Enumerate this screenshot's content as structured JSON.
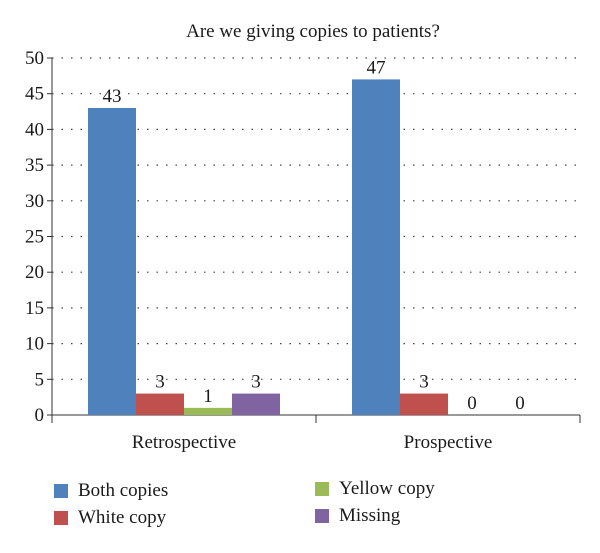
{
  "chart_data": {
    "type": "bar",
    "title": "Are we giving copies to patients?",
    "categories": [
      "Retrospective",
      "Prospective"
    ],
    "series": [
      {
        "name": "Both copies",
        "values": [
          43,
          47
        ],
        "color": "#4f81bd"
      },
      {
        "name": "White copy",
        "values": [
          3,
          3
        ],
        "color": "#c0504d"
      },
      {
        "name": "Yellow copy",
        "values": [
          1,
          0
        ],
        "color": "#9bbb59"
      },
      {
        "name": "Missing",
        "values": [
          3,
          0
        ],
        "color": "#8064a2"
      }
    ],
    "ylim": [
      0,
      50
    ],
    "yticks": [
      0,
      5,
      10,
      15,
      20,
      25,
      30,
      35,
      40,
      45,
      50
    ],
    "grid": true,
    "legend_position": "bottom"
  }
}
